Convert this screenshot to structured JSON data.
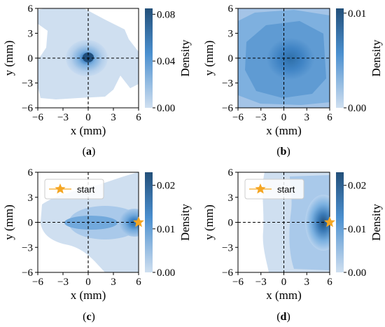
{
  "figure": {
    "captions": [
      "(a)",
      "(b)",
      "(c)",
      "(d)"
    ]
  },
  "colors": {
    "low": "#cfdff0",
    "mid": "#4a8fcf",
    "high": "#2a6aa6",
    "darkest": "#1f4e7c",
    "crosshair": "#000000",
    "start_marker": "#f5a623"
  },
  "chart_data": [
    {
      "type": "heatmap",
      "subtype": "kde-contour",
      "panel": "(a)",
      "xlabel": "x (mm)",
      "ylabel": "y (mm)",
      "xlim": [
        -6,
        6
      ],
      "ylim": [
        -6,
        6
      ],
      "xticks": [
        "−6",
        "−3",
        "0",
        "3",
        "6"
      ],
      "yticks": [
        "−6",
        "−3",
        "0",
        "3",
        "6"
      ],
      "colorbar": {
        "label": "Density",
        "range": [
          0,
          0.085
        ],
        "ticks": [
          "0.00",
          "0.04",
          "0.08"
        ]
      },
      "peak": {
        "x": 0,
        "y": 0,
        "density": 0.085
      },
      "crosshair": {
        "x": 0,
        "y": 0
      },
      "legend": null
    },
    {
      "type": "heatmap",
      "subtype": "kde-contour",
      "panel": "(b)",
      "xlabel": "x (mm)",
      "ylabel": "y (mm)",
      "xlim": [
        -6,
        6
      ],
      "ylim": [
        -6,
        6
      ],
      "xticks": [
        "−6",
        "−3",
        "0",
        "3",
        "6"
      ],
      "yticks": [
        "−6",
        "−3",
        "0",
        "3",
        "6"
      ],
      "colorbar": {
        "label": "Density",
        "range": [
          0,
          0.0105
        ],
        "ticks": [
          "0.00",
          "0.01"
        ]
      },
      "peak": {
        "x": 1,
        "y": 0.5,
        "density": 0.01
      },
      "crosshair": {
        "x": 0,
        "y": 0
      },
      "legend": null
    },
    {
      "type": "heatmap",
      "subtype": "kde-contour",
      "panel": "(c)",
      "xlabel": "x (mm)",
      "ylabel": "y (mm)",
      "xlim": [
        -6,
        6
      ],
      "ylim": [
        -6,
        6
      ],
      "xticks": [
        "−6",
        "−3",
        "0",
        "3",
        "6"
      ],
      "yticks": [
        "−6",
        "−3",
        "0",
        "3",
        "6"
      ],
      "colorbar": {
        "label": "Density",
        "range": [
          0,
          0.023
        ],
        "ticks": [
          "0.00",
          "0.01",
          "0.02"
        ]
      },
      "peak": {
        "x": 5.6,
        "y": 0,
        "density": 0.022
      },
      "start": {
        "x": 6,
        "y": 0
      },
      "crosshair": {
        "x": 0,
        "y": 0
      },
      "legend": {
        "label": "start",
        "location": "upper-left"
      }
    },
    {
      "type": "heatmap",
      "subtype": "kde-contour",
      "panel": "(d)",
      "xlabel": "x (mm)",
      "ylabel": "y (mm)",
      "xlim": [
        -6,
        6
      ],
      "ylim": [
        -6,
        6
      ],
      "xticks": [
        "−6",
        "−3",
        "0",
        "3",
        "6"
      ],
      "yticks": [
        "−6",
        "−3",
        "0",
        "3",
        "6"
      ],
      "colorbar": {
        "label": "Density",
        "range": [
          0,
          0.023
        ],
        "ticks": [
          "0.00",
          "0.01",
          "0.02"
        ]
      },
      "peak": {
        "x": 5.7,
        "y": 0,
        "density": 0.023
      },
      "start": {
        "x": 6,
        "y": 0
      },
      "crosshair": {
        "x": 0,
        "y": 0
      },
      "legend": {
        "label": "start",
        "location": "upper-left"
      }
    }
  ]
}
